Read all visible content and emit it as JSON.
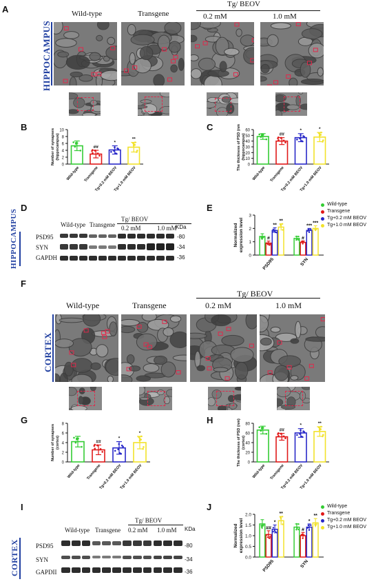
{
  "panels": {
    "A": "A",
    "B": "B",
    "C": "C",
    "D": "D",
    "E": "E",
    "F": "F",
    "G": "G",
    "H": "H",
    "I": "I",
    "J": "J"
  },
  "regions": {
    "top": "HIPPOCAMPUS",
    "bottom": "CORTEX"
  },
  "em_groups": {
    "wt": "Wild-type",
    "tg": "Transgene",
    "tg_beov": "Tg/ BEOV",
    "low": "0.2 mM",
    "high": "1.0 mM"
  },
  "blot": {
    "proteins": [
      "PSD95",
      "SYN",
      "GAPDH"
    ],
    "kda_label": "KDa",
    "mw": [
      "-80",
      "-34",
      "-36"
    ]
  },
  "blot_top": {
    "wt": "Wild-type",
    "tg": "Transgene",
    "tg_beov": "Tg/ BEOV",
    "low": "0.2 mM",
    "high": "1.0 mM"
  },
  "blot_bottom": {
    "wt": "Wild-type",
    "tg": "Transgene",
    "tg_beov": "Tg/ BEOV",
    "low": "0.2 mM",
    "high": "1.0 mM",
    "gapdh": "GAPDII"
  },
  "legend": [
    "Wild-type",
    "Transgene",
    "Tg+0.2 mM BEOV",
    "Tg+1.0 mM BEOV"
  ],
  "colors": {
    "wt": "#33cc33",
    "tg": "#e01818",
    "low": "#2828c8",
    "high": "#f2e22a",
    "region": "#1f3ea0",
    "box": "#e0294b"
  },
  "chart_data": [
    {
      "id": "B",
      "type": "bar",
      "categories": [
        "Wild-type",
        "Transgene",
        "Tg+0.2 mM BEOV",
        "Tg+1.0 mM BEOV"
      ],
      "values": [
        5.3,
        2.9,
        4.1,
        4.9
      ],
      "errors": [
        1.4,
        1.1,
        1.2,
        1.4
      ],
      "sig": [
        "",
        "##",
        "*",
        "**"
      ],
      "ylabel": "Number of synapses\n(hippocampus)",
      "ylim": [
        0,
        10
      ],
      "yticks": [
        "0",
        "2",
        "4",
        "6",
        "8",
        "10"
      ]
    },
    {
      "id": "C",
      "type": "bar",
      "categories": [
        "Wild-type",
        "Transgene",
        "Tg+0.2 mM BEOV",
        "Tg+1.0 mM BEOV"
      ],
      "values": [
        48,
        40,
        46,
        47
      ],
      "errors": [
        5,
        6,
        7,
        8
      ],
      "sig": [
        "",
        "##",
        "*",
        "*"
      ],
      "ylabel": "The thickness of PSD (nm)\n(hippocampus)",
      "ylim": [
        0,
        60
      ],
      "yticks": [
        "0",
        "10",
        "20",
        "30",
        "40",
        "50",
        "60"
      ]
    },
    {
      "id": "E",
      "type": "bar",
      "categories": [
        "PSD95",
        "SYN"
      ],
      "series": [
        {
          "name": "Wild-type",
          "values": [
            1.4,
            1.25
          ],
          "errors": [
            0.2,
            0.15
          ]
        },
        {
          "name": "Transgene",
          "values": [
            0.9,
            0.95
          ],
          "errors": [
            0.15,
            0.12
          ]
        },
        {
          "name": "Tg+0.2 mM BEOV",
          "values": [
            1.85,
            1.85
          ],
          "errors": [
            0.2,
            0.15
          ]
        },
        {
          "name": "Tg+1.0 mM BEOV",
          "values": [
            2.1,
            2.0
          ],
          "errors": [
            0.25,
            0.2
          ]
        }
      ],
      "sig": [
        [
          "",
          "#",
          "**",
          "**"
        ],
        [
          "",
          "#",
          "***",
          "***"
        ]
      ],
      "ylabel": "Normalized\nexpression level",
      "ylim": [
        0,
        3
      ],
      "yticks": [
        "0",
        "1",
        "2",
        "3"
      ]
    },
    {
      "id": "G",
      "type": "bar",
      "categories": [
        "Wild-type",
        "Transgene",
        "Tg+0.2 mM BEOV",
        "Tg+1.0 mM BEOV"
      ],
      "values": [
        4.2,
        2.5,
        2.9,
        4.0
      ],
      "errors": [
        1.1,
        1.0,
        1.3,
        1.3
      ],
      "sig": [
        "",
        "##",
        "*",
        "*"
      ],
      "ylabel": "Number of synapses\n(cortex)",
      "ylim": [
        0,
        8
      ],
      "yticks": [
        "0",
        "2",
        "4",
        "6",
        "8"
      ]
    },
    {
      "id": "H",
      "type": "bar",
      "categories": [
        "Wild-type",
        "Transgene",
        "Tg+0.2 mM BEOV",
        "Tg+1.0 mM BEOV"
      ],
      "values": [
        66,
        52,
        60,
        63
      ],
      "errors": [
        8,
        7,
        9,
        10
      ],
      "sig": [
        "",
        "##",
        "*",
        "**"
      ],
      "ylabel": "The thickness of PSD (nm)\n(cortex)",
      "ylim": [
        0,
        80
      ],
      "yticks": [
        "0",
        "20",
        "40",
        "60",
        "80"
      ]
    },
    {
      "id": "J",
      "type": "bar",
      "categories": [
        "PSD95",
        "SYN"
      ],
      "series": [
        {
          "name": "Wild-type",
          "values": [
            1.55,
            1.4
          ],
          "errors": [
            0.2,
            0.15
          ]
        },
        {
          "name": "Transgene",
          "values": [
            1.05,
            1.0
          ],
          "errors": [
            0.18,
            0.15
          ]
        },
        {
          "name": "Tg+0.2 mM BEOV",
          "values": [
            1.3,
            1.4
          ],
          "errors": [
            0.2,
            0.15
          ]
        },
        {
          "name": "Tg+1.0 mM BEOV",
          "values": [
            1.7,
            1.6
          ],
          "errors": [
            0.2,
            0.2
          ]
        }
      ],
      "sig": [
        [
          "",
          "##",
          "*",
          "**"
        ],
        [
          "",
          "#",
          "*",
          "**"
        ]
      ],
      "ylabel": "Normalized\nexpression level",
      "ylim": [
        0,
        2
      ],
      "yticks": [
        "0.0",
        "0.5",
        "1.0",
        "1.5",
        "2.0"
      ]
    }
  ]
}
